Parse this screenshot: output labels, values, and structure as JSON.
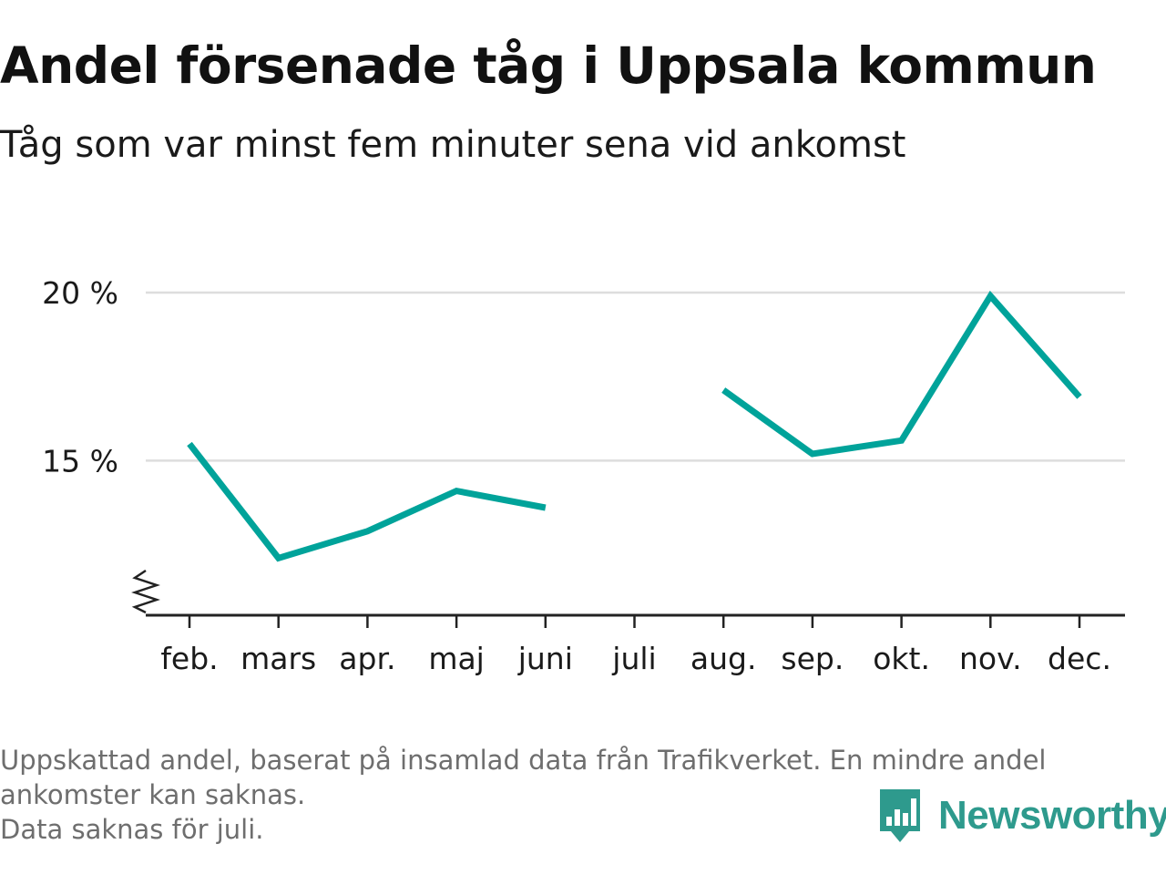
{
  "title": "Andel försenade tåg i Uppsala kommun",
  "subtitle": "Tåg som var minst fem minuter sena vid ankomst",
  "chart_data": {
    "type": "line",
    "title": "Andel försenade tåg i Uppsala kommun",
    "subtitle": "Tåg som var minst fem minuter sena vid ankomst",
    "categories": [
      "feb.",
      "mars",
      "apr.",
      "maj",
      "juni",
      "juli",
      "aug.",
      "sep.",
      "okt.",
      "nov.",
      "dec."
    ],
    "series": [
      {
        "values": [
          15.5,
          12.1,
          12.9,
          14.1,
          13.6,
          null,
          17.1,
          15.2,
          15.6,
          19.9,
          16.9
        ]
      }
    ],
    "ylim": [
      10.4,
      20.3
    ],
    "y_ticks": [
      {
        "value": 15,
        "label": "15 %"
      },
      {
        "value": 20,
        "label": "20 %"
      }
    ],
    "grid": true,
    "axis_break": true,
    "xlabel": "",
    "ylabel": ""
  },
  "colors": {
    "line": "#00a39a",
    "grid": "#dddddd",
    "axis": "#222222",
    "brand": "#2e9a8d"
  },
  "footnote": [
    "Uppskattad andel, baserat på insamlad data från Trafikverket. En mindre andel",
    "ankomster kan saknas.",
    "Data saknas för juli."
  ],
  "brand": {
    "name": "Newsworthy",
    "icon": "newsworthy-logo-icon"
  }
}
